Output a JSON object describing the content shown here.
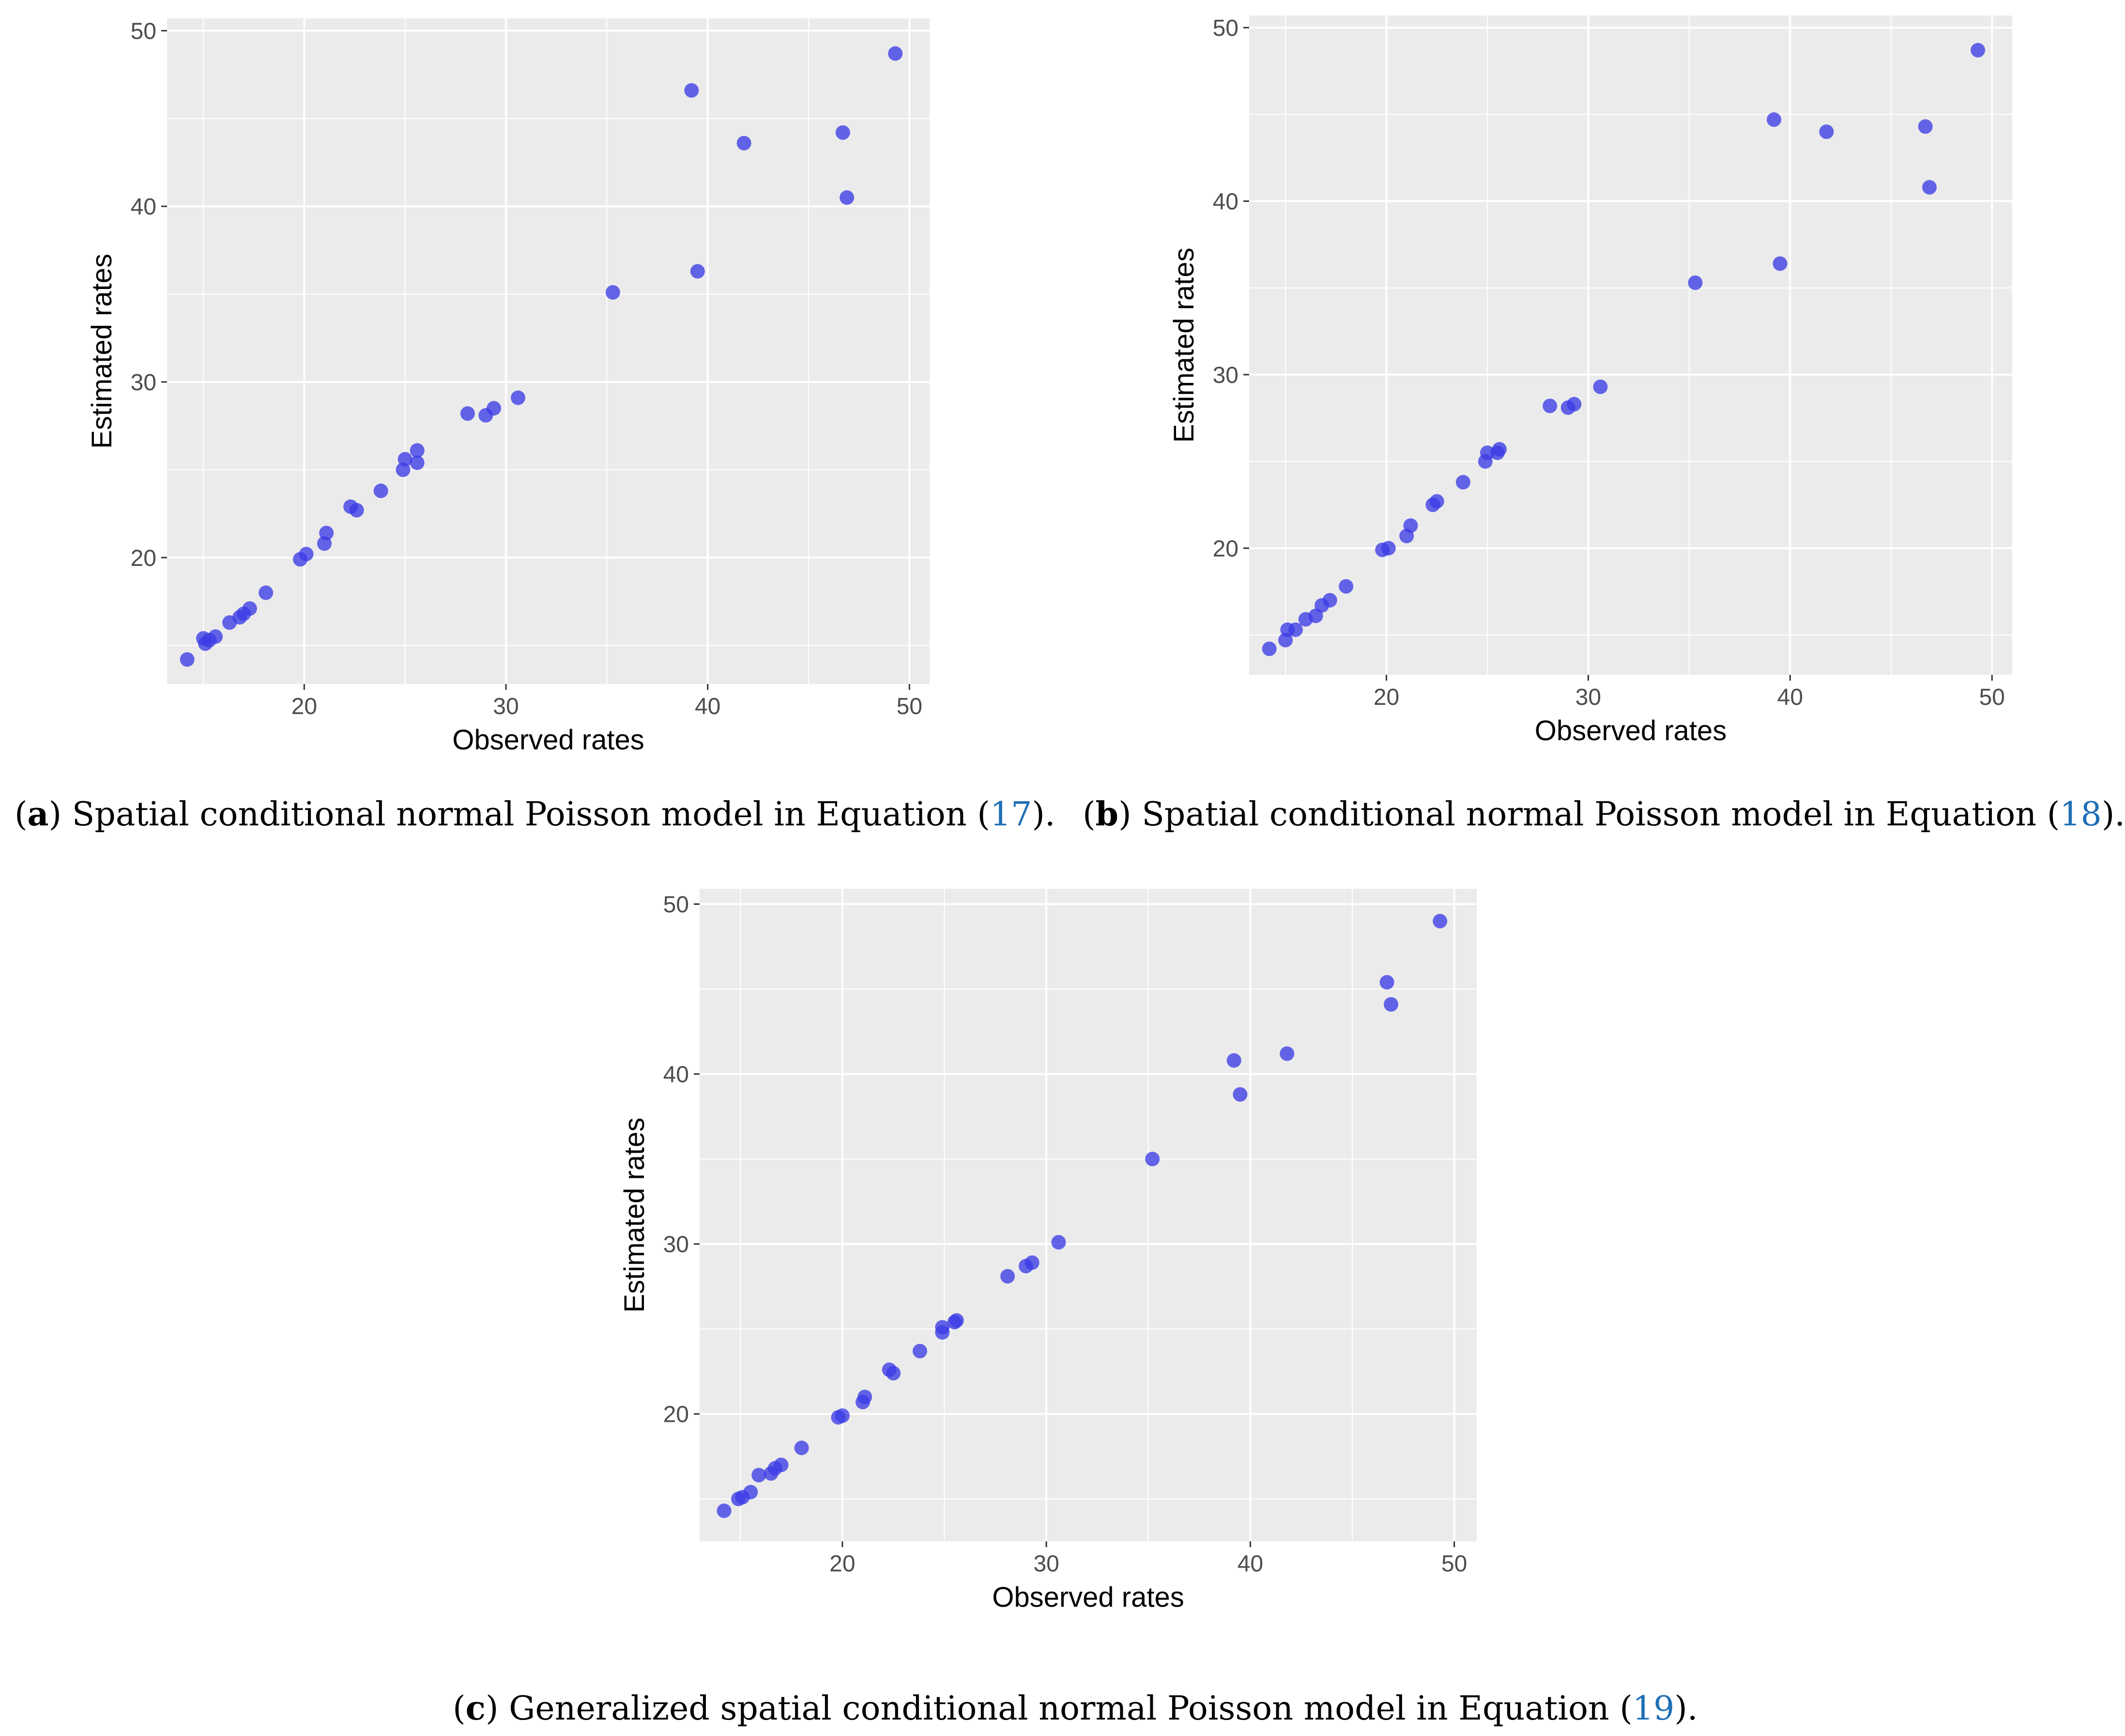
{
  "chart_data": [
    {
      "id": "a",
      "type": "scatter",
      "title": "",
      "xlabel": "Observed rates",
      "ylabel": "Estimated rates",
      "xlim": [
        13.2,
        51.0
      ],
      "ylim": [
        12.8,
        50.7
      ],
      "x_ticks": [
        20,
        30,
        40,
        50
      ],
      "y_ticks": [
        20,
        30,
        40,
        50
      ],
      "x_tick_labels": [
        "20",
        "30",
        "40",
        "50"
      ],
      "y_tick_labels": [
        "20",
        "30",
        "40",
        "50"
      ],
      "grid": true,
      "point_color": "#3b3be6",
      "background": "#ebebeb",
      "caption": {
        "letter": "a",
        "text": " Spatial conditional normal Poisson model in Equation ",
        "equation": "17",
        "suffix": ")."
      },
      "points": [
        {
          "x": 14.2,
          "y": 14.2
        },
        {
          "x": 15.0,
          "y": 15.4
        },
        {
          "x": 15.1,
          "y": 15.1
        },
        {
          "x": 15.3,
          "y": 15.3
        },
        {
          "x": 15.6,
          "y": 15.5
        },
        {
          "x": 16.3,
          "y": 16.3
        },
        {
          "x": 16.8,
          "y": 16.6
        },
        {
          "x": 17.0,
          "y": 16.8
        },
        {
          "x": 17.3,
          "y": 17.1
        },
        {
          "x": 18.1,
          "y": 18.0
        },
        {
          "x": 19.8,
          "y": 19.9
        },
        {
          "x": 20.1,
          "y": 20.2
        },
        {
          "x": 21.0,
          "y": 20.8
        },
        {
          "x": 21.1,
          "y": 21.4
        },
        {
          "x": 22.3,
          "y": 22.9
        },
        {
          "x": 22.6,
          "y": 22.7
        },
        {
          "x": 23.8,
          "y": 23.8
        },
        {
          "x": 24.9,
          "y": 25.0
        },
        {
          "x": 25.0,
          "y": 25.6
        },
        {
          "x": 25.6,
          "y": 25.4
        },
        {
          "x": 25.6,
          "y": 26.1
        },
        {
          "x": 28.1,
          "y": 28.2
        },
        {
          "x": 29.0,
          "y": 28.1
        },
        {
          "x": 29.4,
          "y": 28.5
        },
        {
          "x": 30.6,
          "y": 29.1
        },
        {
          "x": 35.3,
          "y": 35.1
        },
        {
          "x": 39.2,
          "y": 46.6
        },
        {
          "x": 39.5,
          "y": 36.3
        },
        {
          "x": 41.8,
          "y": 43.6
        },
        {
          "x": 46.7,
          "y": 44.2
        },
        {
          "x": 46.9,
          "y": 40.5
        },
        {
          "x": 49.3,
          "y": 48.7
        }
      ]
    },
    {
      "id": "b",
      "type": "scatter",
      "title": "",
      "xlabel": "Observed rates",
      "ylabel": "Estimated rates",
      "xlim": [
        13.2,
        51.0
      ],
      "ylim": [
        12.7,
        50.7
      ],
      "x_ticks": [
        20,
        30,
        40,
        50
      ],
      "y_ticks": [
        20,
        30,
        40,
        50
      ],
      "x_tick_labels": [
        "20",
        "30",
        "40",
        "50"
      ],
      "y_tick_labels": [
        "20",
        "30",
        "40",
        "50"
      ],
      "grid": true,
      "point_color": "#3b3be6",
      "background": "#ebebeb",
      "caption": {
        "letter": "b",
        "text": " Spatial conditional normal Poisson model in Equation ",
        "equation": "18",
        "suffix": ")."
      },
      "points": [
        {
          "x": 14.2,
          "y": 14.2
        },
        {
          "x": 15.0,
          "y": 14.7
        },
        {
          "x": 15.1,
          "y": 15.3
        },
        {
          "x": 15.5,
          "y": 15.3
        },
        {
          "x": 16.0,
          "y": 15.9
        },
        {
          "x": 16.5,
          "y": 16.1
        },
        {
          "x": 16.8,
          "y": 16.7
        },
        {
          "x": 17.2,
          "y": 17.0
        },
        {
          "x": 18.0,
          "y": 17.8
        },
        {
          "x": 19.8,
          "y": 19.9
        },
        {
          "x": 20.1,
          "y": 20.0
        },
        {
          "x": 21.0,
          "y": 20.7
        },
        {
          "x": 21.2,
          "y": 21.3
        },
        {
          "x": 22.3,
          "y": 22.5
        },
        {
          "x": 22.5,
          "y": 22.7
        },
        {
          "x": 23.8,
          "y": 23.8
        },
        {
          "x": 24.9,
          "y": 25.0
        },
        {
          "x": 25.0,
          "y": 25.5
        },
        {
          "x": 25.5,
          "y": 25.5
        },
        {
          "x": 25.6,
          "y": 25.7
        },
        {
          "x": 28.1,
          "y": 28.2
        },
        {
          "x": 29.0,
          "y": 28.1
        },
        {
          "x": 29.3,
          "y": 28.3
        },
        {
          "x": 30.6,
          "y": 29.3
        },
        {
          "x": 35.3,
          "y": 35.3
        },
        {
          "x": 39.2,
          "y": 44.7
        },
        {
          "x": 39.5,
          "y": 36.4
        },
        {
          "x": 41.8,
          "y": 44.0
        },
        {
          "x": 46.7,
          "y": 44.3
        },
        {
          "x": 46.9,
          "y": 40.8
        },
        {
          "x": 49.3,
          "y": 48.7
        }
      ]
    },
    {
      "id": "c",
      "type": "scatter",
      "title": "",
      "xlabel": "Observed rates",
      "ylabel": "Estimated rates",
      "xlim": [
        13.0,
        51.1
      ],
      "ylim": [
        12.5,
        50.9
      ],
      "x_ticks": [
        20,
        30,
        40,
        50
      ],
      "y_ticks": [
        20,
        30,
        40,
        50
      ],
      "x_tick_labels": [
        "20",
        "30",
        "40",
        "50"
      ],
      "y_tick_labels": [
        "20",
        "30",
        "40",
        "50"
      ],
      "grid": true,
      "point_color": "#3b3be6",
      "background": "#ebebeb",
      "caption": {
        "letter": "c",
        "text": " Generalized spatial conditional normal Poisson model in Equation ",
        "equation": "19",
        "suffix": ")."
      },
      "points": [
        {
          "x": 14.2,
          "y": 14.3
        },
        {
          "x": 14.9,
          "y": 15.0
        },
        {
          "x": 15.1,
          "y": 15.1
        },
        {
          "x": 15.5,
          "y": 15.4
        },
        {
          "x": 15.9,
          "y": 16.4
        },
        {
          "x": 16.5,
          "y": 16.5
        },
        {
          "x": 16.7,
          "y": 16.8
        },
        {
          "x": 17.0,
          "y": 17.0
        },
        {
          "x": 18.0,
          "y": 18.0
        },
        {
          "x": 19.8,
          "y": 19.8
        },
        {
          "x": 20.0,
          "y": 19.9
        },
        {
          "x": 21.0,
          "y": 20.7
        },
        {
          "x": 21.1,
          "y": 21.0
        },
        {
          "x": 22.3,
          "y": 22.6
        },
        {
          "x": 22.5,
          "y": 22.4
        },
        {
          "x": 23.8,
          "y": 23.7
        },
        {
          "x": 24.9,
          "y": 24.8
        },
        {
          "x": 24.9,
          "y": 25.1
        },
        {
          "x": 25.5,
          "y": 25.4
        },
        {
          "x": 25.6,
          "y": 25.5
        },
        {
          "x": 28.1,
          "y": 28.1
        },
        {
          "x": 29.0,
          "y": 28.7
        },
        {
          "x": 29.3,
          "y": 28.9
        },
        {
          "x": 30.6,
          "y": 30.1
        },
        {
          "x": 35.2,
          "y": 35.0
        },
        {
          "x": 39.2,
          "y": 40.8
        },
        {
          "x": 39.5,
          "y": 38.8
        },
        {
          "x": 41.8,
          "y": 41.2
        },
        {
          "x": 46.7,
          "y": 45.4
        },
        {
          "x": 46.9,
          "y": 44.1
        },
        {
          "x": 49.3,
          "y": 49.0
        }
      ]
    }
  ]
}
